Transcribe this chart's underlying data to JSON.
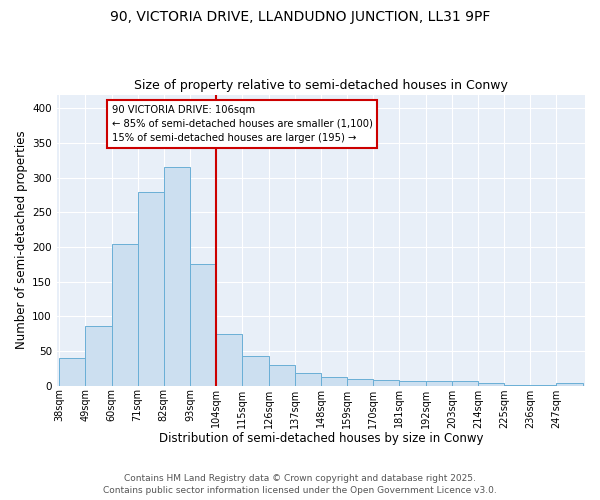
{
  "title": "90, VICTORIA DRIVE, LLANDUDNO JUNCTION, LL31 9PF",
  "subtitle": "Size of property relative to semi-detached houses in Conwy",
  "xlabel": "Distribution of semi-detached houses by size in Conwy",
  "ylabel": "Number of semi-detached properties",
  "bin_edges": [
    38,
    49,
    60,
    71,
    82,
    93,
    104,
    115,
    126,
    137,
    148,
    159,
    170,
    181,
    192,
    203,
    214,
    225,
    236,
    247,
    258
  ],
  "counts": [
    40,
    86,
    204,
    280,
    315,
    175,
    75,
    42,
    29,
    18,
    13,
    9,
    8,
    6,
    6,
    6,
    3,
    1,
    1,
    4
  ],
  "bar_color": "#ccdff0",
  "bar_edge_color": "#6aafd6",
  "vline_x": 104,
  "vline_color": "#cc0000",
  "annotation_text": "90 VICTORIA DRIVE: 106sqm\n← 85% of semi-detached houses are smaller (1,100)\n15% of semi-detached houses are larger (195) →",
  "annotation_box_color": "#cc0000",
  "ylim": [
    0,
    420
  ],
  "yticks": [
    0,
    50,
    100,
    150,
    200,
    250,
    300,
    350,
    400
  ],
  "background_color": "#e8eff8",
  "footer_line1": "Contains HM Land Registry data © Crown copyright and database right 2025.",
  "footer_line2": "Contains public sector information licensed under the Open Government Licence v3.0.",
  "title_fontsize": 10,
  "subtitle_fontsize": 9,
  "tick_label_fontsize": 7,
  "axis_label_fontsize": 8.5,
  "footer_fontsize": 6.5
}
